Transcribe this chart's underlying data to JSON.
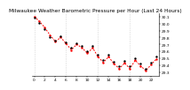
{
  "title": "Milwaukee Weather Barometric Pressure per Hour (Last 24 Hours)",
  "hours": [
    0,
    1,
    2,
    3,
    4,
    5,
    6,
    7,
    8,
    9,
    10,
    11,
    12,
    13,
    14,
    15,
    16,
    17,
    18,
    19,
    20,
    21,
    22,
    23
  ],
  "pressure_black": [
    30.08,
    30.01,
    29.92,
    29.81,
    29.76,
    29.82,
    29.73,
    29.65,
    29.72,
    29.68,
    29.6,
    29.68,
    29.55,
    29.47,
    29.55,
    29.45,
    29.38,
    29.46,
    29.38,
    29.5,
    29.42,
    29.35,
    29.44,
    29.52
  ],
  "pressure_red": [
    30.1,
    30.03,
    29.94,
    29.83,
    29.74,
    29.8,
    29.71,
    29.62,
    29.7,
    29.65,
    29.57,
    29.65,
    29.52,
    29.44,
    29.52,
    29.42,
    29.35,
    29.43,
    29.35,
    29.47,
    29.39,
    29.32,
    29.41,
    29.49
  ],
  "ylim": [
    29.25,
    30.15
  ],
  "yticks": [
    29.3,
    29.4,
    29.5,
    29.6,
    29.7,
    29.8,
    29.9,
    30.0,
    30.1
  ],
  "ytick_labels": [
    "29.3",
    "29.4",
    "29.5",
    "29.6",
    "29.7",
    "29.8",
    "29.9",
    "30.0",
    "30.1"
  ],
  "black_color": "#000000",
  "red_color": "#ff0000",
  "gray_color": "#888888",
  "title_fontsize": 4.2,
  "tick_fontsize": 3.2,
  "bg_color": "#ffffff",
  "grid_color": "#aaaaaa",
  "grid_every": 6
}
